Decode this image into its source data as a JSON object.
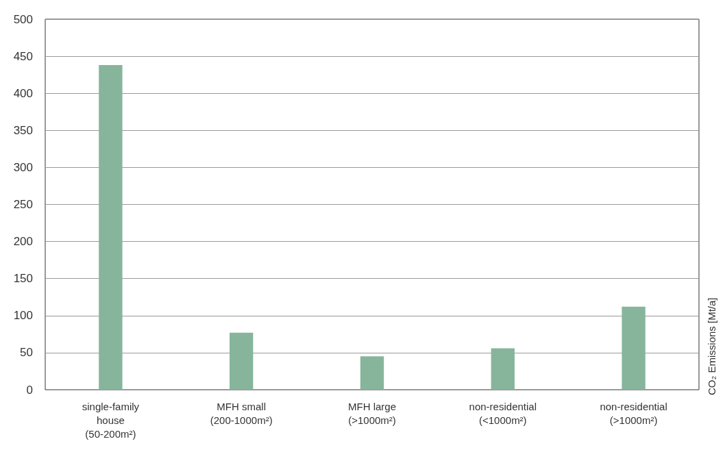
{
  "chart_data": {
    "type": "bar",
    "categories": [
      "single-family\nhouse\n(50-200m²)",
      "MFH small\n(200-1000m²)",
      "MFH large\n(>1000m²)",
      "non-residential\n(<1000m²)",
      "non-residential\n(>1000m²)"
    ],
    "values": [
      438,
      77,
      45,
      56,
      112
    ],
    "color": "#86b59b",
    "ylabel": "CO₂ Emissions [Mt/a]",
    "ylim": [
      0,
      500
    ],
    "yticks": [
      0,
      50,
      100,
      150,
      200,
      250,
      300,
      350,
      400,
      450,
      500
    ],
    "grid": "y"
  }
}
